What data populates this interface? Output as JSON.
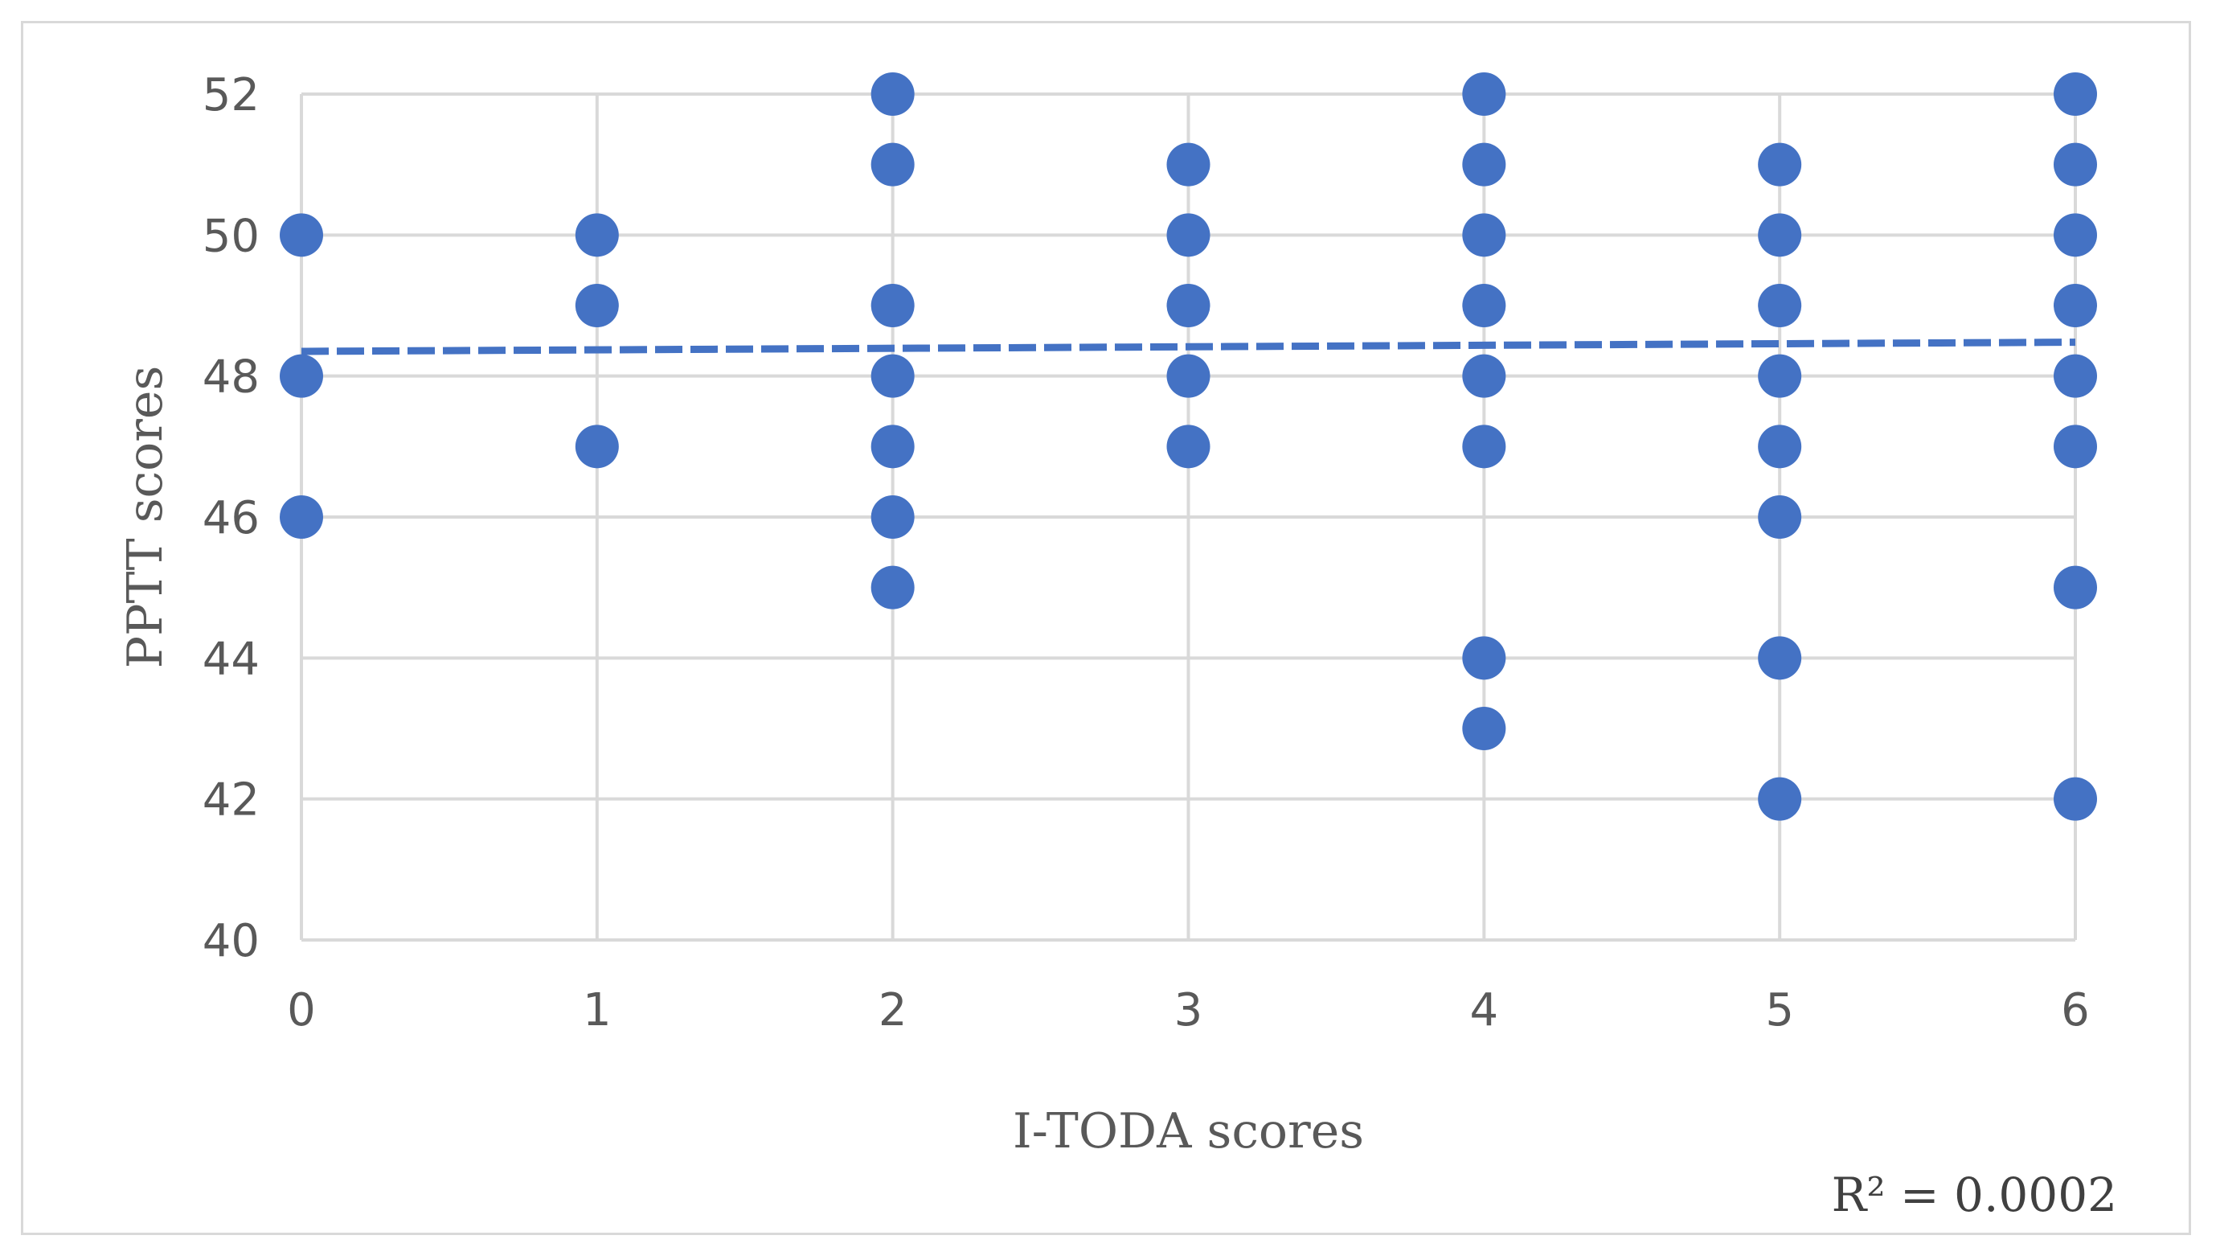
{
  "chart_data": {
    "type": "scatter",
    "title": "",
    "xlabel": "I-TODA scores",
    "ylabel": "PPTT scores",
    "xlim": [
      0,
      6
    ],
    "ylim": [
      40,
      52
    ],
    "x_ticks": [
      0,
      1,
      2,
      3,
      4,
      5,
      6
    ],
    "y_ticks": [
      40,
      42,
      44,
      46,
      48,
      50,
      52
    ],
    "grid": true,
    "legend": "none",
    "marker_color": "#4472c4",
    "trendline": {
      "type": "linear",
      "style": "dashed",
      "color": "#4472c4",
      "y_at_xmin": 48.35,
      "y_at_xmax": 48.48,
      "r_squared_label": "R² = 0.0002"
    },
    "points": [
      {
        "x": 0,
        "y": 50
      },
      {
        "x": 0,
        "y": 48
      },
      {
        "x": 0,
        "y": 46
      },
      {
        "x": 1,
        "y": 50
      },
      {
        "x": 1,
        "y": 49
      },
      {
        "x": 1,
        "y": 47
      },
      {
        "x": 2,
        "y": 52
      },
      {
        "x": 2,
        "y": 51
      },
      {
        "x": 2,
        "y": 49
      },
      {
        "x": 2,
        "y": 48
      },
      {
        "x": 2,
        "y": 47
      },
      {
        "x": 2,
        "y": 46
      },
      {
        "x": 2,
        "y": 45
      },
      {
        "x": 3,
        "y": 51
      },
      {
        "x": 3,
        "y": 50
      },
      {
        "x": 3,
        "y": 49
      },
      {
        "x": 3,
        "y": 48
      },
      {
        "x": 3,
        "y": 47
      },
      {
        "x": 4,
        "y": 52
      },
      {
        "x": 4,
        "y": 51
      },
      {
        "x": 4,
        "y": 50
      },
      {
        "x": 4,
        "y": 49
      },
      {
        "x": 4,
        "y": 48
      },
      {
        "x": 4,
        "y": 47
      },
      {
        "x": 4,
        "y": 44
      },
      {
        "x": 4,
        "y": 43
      },
      {
        "x": 5,
        "y": 51
      },
      {
        "x": 5,
        "y": 50
      },
      {
        "x": 5,
        "y": 49
      },
      {
        "x": 5,
        "y": 48
      },
      {
        "x": 5,
        "y": 47
      },
      {
        "x": 5,
        "y": 46
      },
      {
        "x": 5,
        "y": 44
      },
      {
        "x": 5,
        "y": 42
      },
      {
        "x": 6,
        "y": 52
      },
      {
        "x": 6,
        "y": 51
      },
      {
        "x": 6,
        "y": 50
      },
      {
        "x": 6,
        "y": 49
      },
      {
        "x": 6,
        "y": 48
      },
      {
        "x": 6,
        "y": 47
      },
      {
        "x": 6,
        "y": 45
      },
      {
        "x": 6,
        "y": 42
      }
    ]
  }
}
